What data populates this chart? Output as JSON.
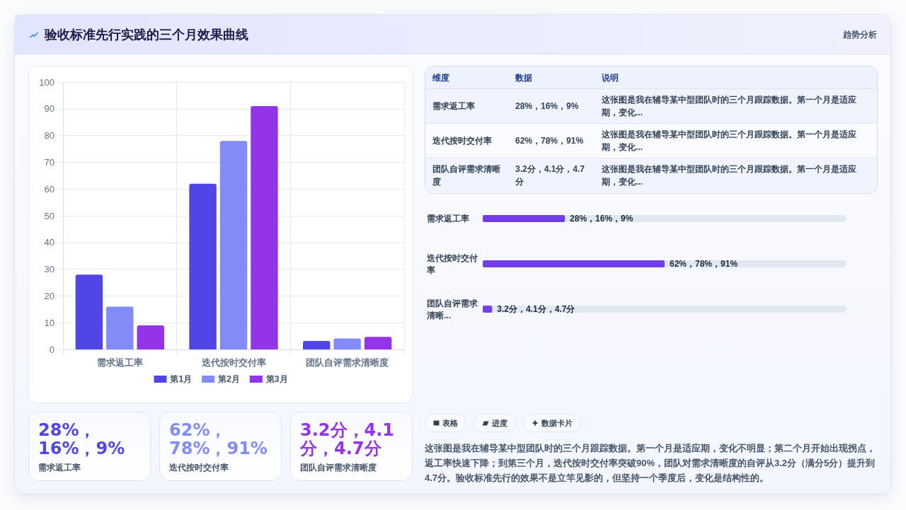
{
  "chart_data": [
    {
      "type": "other",
      "title": "验收标准先行实践的三个月效果曲线",
      "subtitle": "趋势分析"
    },
    {
      "type": "bar",
      "categories": [
        "需求返工率",
        "迭代按时交付率",
        "团队自评需求清晰度"
      ],
      "series": [
        {
          "name": "第1月",
          "color": "#4f46e5",
          "values": [
            28,
            62,
            3.2
          ]
        },
        {
          "name": "第2月",
          "color": "#818cf8",
          "values": [
            16,
            78,
            4.1
          ]
        },
        {
          "name": "第3月",
          "color": "#9333ea",
          "values": [
            9,
            91,
            4.7
          ]
        }
      ],
      "ylim": [
        0,
        100
      ],
      "yticks": [
        0,
        10,
        20,
        30,
        40,
        50,
        60,
        70,
        80,
        90,
        100
      ],
      "grid": true,
      "legend": "bottom"
    },
    {
      "type": "other",
      "annotations": [
        "维度",
        "数据",
        "说明",
        "需求返工率",
        "28%，16%，9%",
        "这张图是我在辅导某中型团队时的三个月跟踪数据。第一个月是适应期，变化...",
        "迭代按时交付率",
        "62%，78%，91%",
        "这张图是我在辅导某中型团队时的三个月跟踪数据。第一个月是适应期，变化...",
        "团队自评需求清晰度",
        "3.2分，4.1分，4.7分",
        "这张图是我在辅导某中型团队时的三个月跟踪数据。第一个月是适应期，变化..."
      ]
    },
    {
      "type": "bar",
      "orientation": "horizontal",
      "categories": [
        "需求返工率",
        "迭代按时交付率",
        "团队自评需求清晰..."
      ],
      "values": [
        28,
        62,
        3.2
      ],
      "value_labels": [
        "28%，16%，9%",
        "62%，78%，91%",
        "3.2分，4.1分，4.7分"
      ],
      "color": "#713ee8",
      "tick_labels": "y"
    },
    {
      "type": "other",
      "annotations": [
        "28%，16%，9%",
        "需求返工率",
        "62%，78%，91%",
        "迭代按时交付率",
        "3.2分，4.1分，4.7分",
        "团队自评需求清晰度"
      ],
      "colors": [
        "#4f46e5",
        "#818cf8",
        "#9333ea"
      ]
    },
    {
      "type": "other",
      "annotations": [
        "表格",
        "进度",
        "数据卡片",
        "这张图是我在辅导某中型团队时的三个月跟踪数据。第一个月是适应期，变化不明显；第二个月开始出现拐点，返工率快速下降；到第三个月，迭代按时交付率突破90%，团队对需求清晰度的自评从3.2分（满分5分）提升到4.7分。验收标准先行的效果不是立竿见影的，但坚持一个季度后，变化是结构性的。"
      ]
    }
  ]
}
